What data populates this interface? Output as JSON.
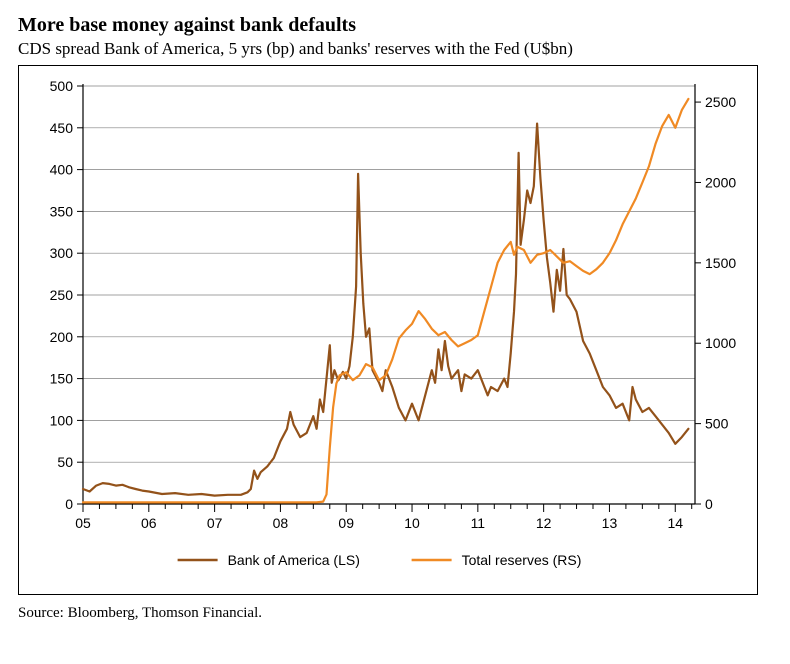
{
  "title": "More base money against bank defaults",
  "subtitle": "CDS spread Bank of America, 5 yrs (bp) and banks' reserves with the Fed (U$bn)",
  "source": "Source: Bloomberg, Thomson Financial.",
  "chart": {
    "type": "line",
    "background_color": "#ffffff",
    "border_color": "#000000",
    "grid_color": "#808080",
    "axis_color": "#000000",
    "label_fontsize": 14,
    "x": {
      "min": 2005,
      "max": 2014.3,
      "ticks": [
        2005,
        2006,
        2007,
        2008,
        2009,
        2010,
        2011,
        2012,
        2013,
        2014
      ],
      "tick_labels": [
        "05",
        "06",
        "07",
        "08",
        "09",
        "10",
        "11",
        "12",
        "13",
        "14"
      ]
    },
    "y_left": {
      "min": 0,
      "max": 500,
      "step": 50,
      "ticks": [
        0,
        50,
        100,
        150,
        200,
        250,
        300,
        350,
        400,
        450,
        500
      ]
    },
    "y_right": {
      "min": 0,
      "max": 2600,
      "step": 500,
      "ticks": [
        0,
        500,
        1000,
        1500,
        2000,
        2500
      ]
    },
    "legend": {
      "items": [
        {
          "label": "Bank of America (LS)",
          "color": "#93521a",
          "line_width": 2.5
        },
        {
          "label": "Total reserves (RS)",
          "color": "#f08a24",
          "line_width": 2.5
        }
      ]
    },
    "series": [
      {
        "name": "Bank of America (LS)",
        "axis": "left",
        "color": "#93521a",
        "line_width": 2.2,
        "points": [
          [
            2005.0,
            18
          ],
          [
            2005.1,
            15
          ],
          [
            2005.2,
            22
          ],
          [
            2005.3,
            25
          ],
          [
            2005.4,
            24
          ],
          [
            2005.5,
            22
          ],
          [
            2005.6,
            23
          ],
          [
            2005.7,
            20
          ],
          [
            2005.8,
            18
          ],
          [
            2005.9,
            16
          ],
          [
            2006.0,
            15
          ],
          [
            2006.2,
            12
          ],
          [
            2006.4,
            13
          ],
          [
            2006.6,
            11
          ],
          [
            2006.8,
            12
          ],
          [
            2007.0,
            10
          ],
          [
            2007.2,
            11
          ],
          [
            2007.4,
            11
          ],
          [
            2007.5,
            14
          ],
          [
            2007.55,
            18
          ],
          [
            2007.6,
            40
          ],
          [
            2007.65,
            30
          ],
          [
            2007.7,
            38
          ],
          [
            2007.8,
            45
          ],
          [
            2007.9,
            55
          ],
          [
            2008.0,
            75
          ],
          [
            2008.1,
            90
          ],
          [
            2008.15,
            110
          ],
          [
            2008.2,
            95
          ],
          [
            2008.3,
            80
          ],
          [
            2008.4,
            85
          ],
          [
            2008.5,
            105
          ],
          [
            2008.55,
            90
          ],
          [
            2008.6,
            125
          ],
          [
            2008.65,
            110
          ],
          [
            2008.7,
            150
          ],
          [
            2008.75,
            190
          ],
          [
            2008.78,
            145
          ],
          [
            2008.82,
            160
          ],
          [
            2008.88,
            148
          ],
          [
            2008.95,
            158
          ],
          [
            2009.0,
            150
          ],
          [
            2009.05,
            165
          ],
          [
            2009.1,
            200
          ],
          [
            2009.15,
            260
          ],
          [
            2009.18,
            395
          ],
          [
            2009.22,
            300
          ],
          [
            2009.26,
            240
          ],
          [
            2009.3,
            200
          ],
          [
            2009.35,
            210
          ],
          [
            2009.4,
            160
          ],
          [
            2009.5,
            145
          ],
          [
            2009.55,
            135
          ],
          [
            2009.6,
            160
          ],
          [
            2009.7,
            140
          ],
          [
            2009.8,
            115
          ],
          [
            2009.9,
            100
          ],
          [
            2010.0,
            120
          ],
          [
            2010.1,
            100
          ],
          [
            2010.2,
            130
          ],
          [
            2010.3,
            160
          ],
          [
            2010.35,
            145
          ],
          [
            2010.4,
            185
          ],
          [
            2010.45,
            160
          ],
          [
            2010.5,
            195
          ],
          [
            2010.55,
            165
          ],
          [
            2010.6,
            150
          ],
          [
            2010.7,
            160
          ],
          [
            2010.75,
            135
          ],
          [
            2010.8,
            155
          ],
          [
            2010.9,
            150
          ],
          [
            2011.0,
            160
          ],
          [
            2011.1,
            140
          ],
          [
            2011.15,
            130
          ],
          [
            2011.2,
            140
          ],
          [
            2011.3,
            135
          ],
          [
            2011.4,
            150
          ],
          [
            2011.45,
            140
          ],
          [
            2011.5,
            180
          ],
          [
            2011.55,
            230
          ],
          [
            2011.58,
            275
          ],
          [
            2011.62,
            420
          ],
          [
            2011.65,
            310
          ],
          [
            2011.7,
            340
          ],
          [
            2011.75,
            375
          ],
          [
            2011.8,
            360
          ],
          [
            2011.85,
            380
          ],
          [
            2011.9,
            455
          ],
          [
            2011.95,
            390
          ],
          [
            2012.0,
            340
          ],
          [
            2012.05,
            295
          ],
          [
            2012.1,
            265
          ],
          [
            2012.15,
            230
          ],
          [
            2012.2,
            280
          ],
          [
            2012.25,
            255
          ],
          [
            2012.3,
            305
          ],
          [
            2012.35,
            250
          ],
          [
            2012.4,
            245
          ],
          [
            2012.5,
            230
          ],
          [
            2012.6,
            195
          ],
          [
            2012.7,
            180
          ],
          [
            2012.8,
            160
          ],
          [
            2012.9,
            140
          ],
          [
            2013.0,
            130
          ],
          [
            2013.1,
            115
          ],
          [
            2013.2,
            120
          ],
          [
            2013.3,
            100
          ],
          [
            2013.35,
            140
          ],
          [
            2013.4,
            125
          ],
          [
            2013.5,
            110
          ],
          [
            2013.6,
            115
          ],
          [
            2013.7,
            105
          ],
          [
            2013.8,
            95
          ],
          [
            2013.9,
            85
          ],
          [
            2014.0,
            72
          ],
          [
            2014.1,
            80
          ],
          [
            2014.2,
            90
          ]
        ]
      },
      {
        "name": "Total reserves (RS)",
        "axis": "right",
        "color": "#f08a24",
        "line_width": 2.2,
        "points": [
          [
            2005.0,
            10
          ],
          [
            2005.5,
            10
          ],
          [
            2006.0,
            10
          ],
          [
            2006.5,
            10
          ],
          [
            2007.0,
            10
          ],
          [
            2007.5,
            10
          ],
          [
            2008.0,
            10
          ],
          [
            2008.4,
            10
          ],
          [
            2008.55,
            10
          ],
          [
            2008.65,
            15
          ],
          [
            2008.7,
            60
          ],
          [
            2008.75,
            350
          ],
          [
            2008.8,
            600
          ],
          [
            2008.85,
            750
          ],
          [
            2008.9,
            800
          ],
          [
            2009.0,
            820
          ],
          [
            2009.1,
            770
          ],
          [
            2009.2,
            800
          ],
          [
            2009.3,
            870
          ],
          [
            2009.4,
            850
          ],
          [
            2009.5,
            770
          ],
          [
            2009.6,
            800
          ],
          [
            2009.7,
            900
          ],
          [
            2009.8,
            1030
          ],
          [
            2009.9,
            1080
          ],
          [
            2010.0,
            1120
          ],
          [
            2010.1,
            1200
          ],
          [
            2010.2,
            1150
          ],
          [
            2010.3,
            1090
          ],
          [
            2010.4,
            1050
          ],
          [
            2010.5,
            1070
          ],
          [
            2010.6,
            1020
          ],
          [
            2010.7,
            980
          ],
          [
            2010.8,
            1000
          ],
          [
            2010.9,
            1020
          ],
          [
            2011.0,
            1050
          ],
          [
            2011.1,
            1200
          ],
          [
            2011.2,
            1350
          ],
          [
            2011.3,
            1500
          ],
          [
            2011.4,
            1580
          ],
          [
            2011.5,
            1630
          ],
          [
            2011.55,
            1550
          ],
          [
            2011.6,
            1600
          ],
          [
            2011.7,
            1580
          ],
          [
            2011.8,
            1500
          ],
          [
            2011.9,
            1550
          ],
          [
            2012.0,
            1560
          ],
          [
            2012.1,
            1580
          ],
          [
            2012.2,
            1540
          ],
          [
            2012.3,
            1500
          ],
          [
            2012.4,
            1510
          ],
          [
            2012.5,
            1480
          ],
          [
            2012.6,
            1450
          ],
          [
            2012.7,
            1430
          ],
          [
            2012.8,
            1460
          ],
          [
            2012.9,
            1500
          ],
          [
            2013.0,
            1560
          ],
          [
            2013.1,
            1640
          ],
          [
            2013.2,
            1740
          ],
          [
            2013.3,
            1820
          ],
          [
            2013.4,
            1900
          ],
          [
            2013.5,
            2000
          ],
          [
            2013.6,
            2100
          ],
          [
            2013.7,
            2240
          ],
          [
            2013.8,
            2350
          ],
          [
            2013.9,
            2420
          ],
          [
            2014.0,
            2340
          ],
          [
            2014.1,
            2450
          ],
          [
            2014.2,
            2520
          ]
        ]
      }
    ]
  }
}
